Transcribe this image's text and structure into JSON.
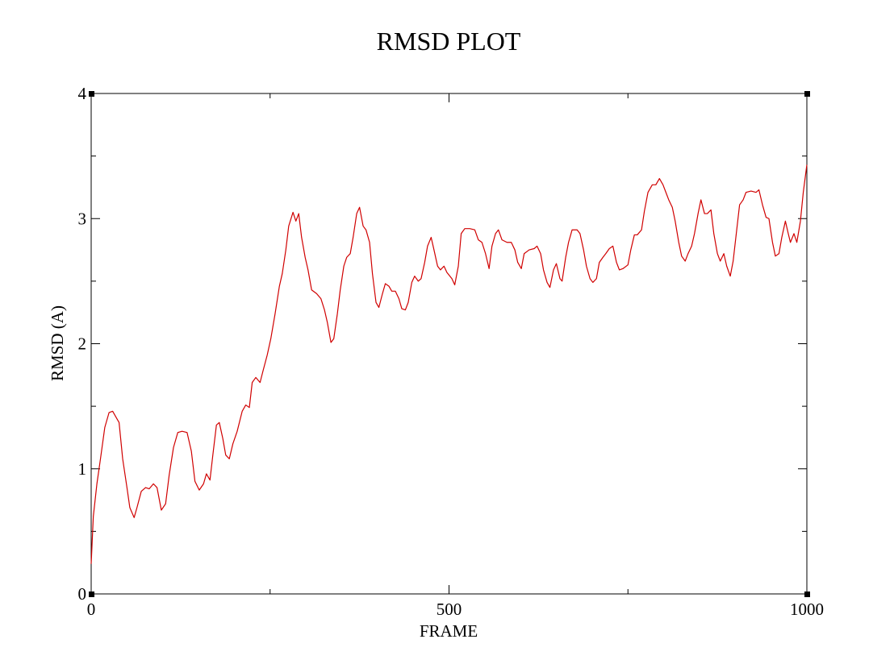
{
  "chart_data": {
    "type": "line",
    "title": "RMSD PLOT",
    "x_label": "FRAME",
    "y_label": "RMSD (A)",
    "xlim": [
      0,
      1000
    ],
    "ylim": [
      0,
      4
    ],
    "xticks": [
      0,
      500,
      1000
    ],
    "yticks": [
      0,
      1,
      2,
      3,
      4
    ],
    "xticks_minor": [
      250,
      750
    ],
    "yticks_minor": [
      0.5,
      1.5,
      2.5,
      3.5
    ],
    "grid": false,
    "series": [
      {
        "color": "#d00000",
        "x": [
          0,
          3,
          8,
          13,
          19,
          25,
          30,
          36,
          39,
          44,
          50,
          54,
          60,
          64,
          70,
          76,
          81,
          87,
          92,
          98,
          104,
          109,
          115,
          121,
          127,
          134,
          140,
          145,
          151,
          157,
          161,
          166,
          170,
          175,
          179,
          184,
          188,
          193,
          198,
          204,
          211,
          216,
          221,
          225,
          230,
          236,
          240,
          246,
          251,
          257,
          263,
          267,
          272,
          276,
          282,
          286,
          290,
          294,
          299,
          303,
          308,
          315,
          321,
          326,
          330,
          335,
          339,
          344,
          348,
          353,
          357,
          362,
          366,
          371,
          375,
          380,
          384,
          389,
          393,
          398,
          402,
          407,
          411,
          416,
          420,
          425,
          430,
          434,
          439,
          443,
          448,
          452,
          457,
          461,
          466,
          470,
          475,
          479,
          484,
          488,
          493,
          497,
          504,
          508,
          513,
          517,
          522,
          529,
          536,
          541,
          546,
          551,
          556,
          560,
          565,
          569,
          574,
          581,
          587,
          592,
          596,
          601,
          605,
          612,
          619,
          623,
          628,
          632,
          637,
          641,
          646,
          650,
          655,
          658,
          663,
          667,
          672,
          679,
          683,
          688,
          692,
          697,
          701,
          706,
          710,
          715,
          719,
          724,
          729,
          734,
          738,
          743,
          750,
          754,
          759,
          763,
          769,
          773,
          778,
          784,
          789,
          794,
          799,
          803,
          807,
          812,
          816,
          821,
          825,
          830,
          834,
          839,
          843,
          848,
          852,
          857,
          861,
          866,
          870,
          875,
          879,
          884,
          888,
          893,
          897,
          902,
          906,
          911,
          915,
          922,
          929,
          933,
          938,
          943,
          947,
          952,
          956,
          961,
          965,
          970,
          974,
          977,
          982,
          986,
          991,
          995,
          1000
        ],
        "values": [
          0.24,
          0.62,
          0.88,
          1.08,
          1.33,
          1.45,
          1.46,
          1.4,
          1.37,
          1.08,
          0.85,
          0.69,
          0.61,
          0.69,
          0.82,
          0.85,
          0.84,
          0.88,
          0.85,
          0.67,
          0.72,
          0.95,
          1.17,
          1.29,
          1.3,
          1.29,
          1.14,
          0.9,
          0.83,
          0.88,
          0.96,
          0.91,
          1.11,
          1.35,
          1.37,
          1.24,
          1.11,
          1.08,
          1.2,
          1.3,
          1.46,
          1.51,
          1.49,
          1.69,
          1.73,
          1.69,
          1.78,
          1.91,
          2.04,
          2.24,
          2.46,
          2.56,
          2.75,
          2.94,
          3.05,
          2.98,
          3.04,
          2.85,
          2.69,
          2.59,
          2.43,
          2.4,
          2.36,
          2.27,
          2.17,
          2.01,
          2.04,
          2.24,
          2.43,
          2.62,
          2.69,
          2.72,
          2.85,
          3.04,
          3.09,
          2.94,
          2.91,
          2.81,
          2.56,
          2.33,
          2.29,
          2.4,
          2.48,
          2.46,
          2.42,
          2.42,
          2.36,
          2.28,
          2.27,
          2.33,
          2.49,
          2.54,
          2.5,
          2.52,
          2.65,
          2.78,
          2.85,
          2.75,
          2.62,
          2.59,
          2.62,
          2.57,
          2.52,
          2.47,
          2.62,
          2.88,
          2.92,
          2.92,
          2.91,
          2.83,
          2.81,
          2.72,
          2.6,
          2.78,
          2.88,
          2.91,
          2.83,
          2.81,
          2.81,
          2.75,
          2.65,
          2.6,
          2.72,
          2.75,
          2.76,
          2.78,
          2.72,
          2.59,
          2.49,
          2.45,
          2.59,
          2.64,
          2.52,
          2.5,
          2.69,
          2.81,
          2.91,
          2.91,
          2.88,
          2.75,
          2.62,
          2.52,
          2.49,
          2.52,
          2.65,
          2.69,
          2.72,
          2.76,
          2.78,
          2.65,
          2.59,
          2.6,
          2.63,
          2.75,
          2.87,
          2.87,
          2.91,
          3.06,
          3.21,
          3.27,
          3.27,
          3.32,
          3.27,
          3.21,
          3.15,
          3.09,
          2.98,
          2.81,
          2.7,
          2.66,
          2.72,
          2.78,
          2.88,
          3.04,
          3.15,
          3.04,
          3.04,
          3.07,
          2.88,
          2.72,
          2.66,
          2.72,
          2.62,
          2.54,
          2.66,
          2.91,
          3.11,
          3.15,
          3.21,
          3.22,
          3.21,
          3.23,
          3.11,
          3.01,
          3.0,
          2.81,
          2.7,
          2.72,
          2.85,
          2.98,
          2.88,
          2.81,
          2.88,
          2.81,
          2.98,
          3.21,
          3.43
        ]
      }
    ]
  }
}
